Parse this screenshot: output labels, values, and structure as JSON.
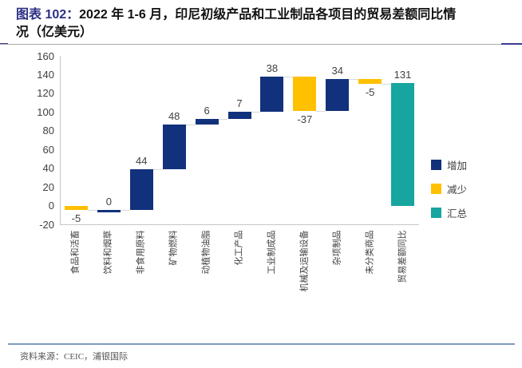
{
  "header": {
    "chart_label": "图表 102：",
    "title_line1_rest": "2022 年 1-6 月，印尼初级产品和工业制品各项目的贸易差额同比情",
    "title_line2": "况（亿美元）"
  },
  "chart_data": {
    "type": "bar",
    "subtype": "waterfall",
    "title": "2022 年 1-6 月，印尼初级产品和工业制品各项目的贸易差额同比情况（亿美元）",
    "unit": "亿美元",
    "categories": [
      "食品和活畜",
      "饮料和烟草",
      "非食用原料",
      "矿物燃料",
      "动植物油脂",
      "化工产品",
      "工业制成品",
      "机械及运输设备",
      "杂项制品",
      "未分类商品",
      "贸易差额同比"
    ],
    "values": [
      -5,
      0,
      44,
      48,
      6,
      7,
      38,
      -37,
      34,
      -5,
      131
    ],
    "kinds": [
      "decrease",
      "zero",
      "increase",
      "increase",
      "increase",
      "increase",
      "increase",
      "decrease",
      "increase",
      "decrease",
      "total"
    ],
    "data_labels": [
      "-5",
      "0",
      "44",
      "48",
      "6",
      "7",
      "38",
      "-37",
      "34",
      "-5",
      "131"
    ],
    "ylim": [
      -20,
      160
    ],
    "ytick_step": 20,
    "grid": false,
    "legend_position": "right",
    "legend": [
      {
        "label": "增加",
        "kind": "increase",
        "color": "#12317C"
      },
      {
        "label": "减少",
        "kind": "decrease",
        "color": "#FFC000"
      },
      {
        "label": "汇总",
        "kind": "total",
        "color": "#17A5A0"
      }
    ]
  },
  "colors": {
    "increase": "#12317C",
    "decrease": "#FFC000",
    "total": "#17A5A0",
    "axis": "#C6C6C6",
    "connector": "#D9D9D9",
    "label_text": "#404040",
    "title_tag": "#2B2F84",
    "footer_rule": "#7E9AC2"
  },
  "footer": {
    "source": "资料来源：CEIC，浦银国际"
  }
}
